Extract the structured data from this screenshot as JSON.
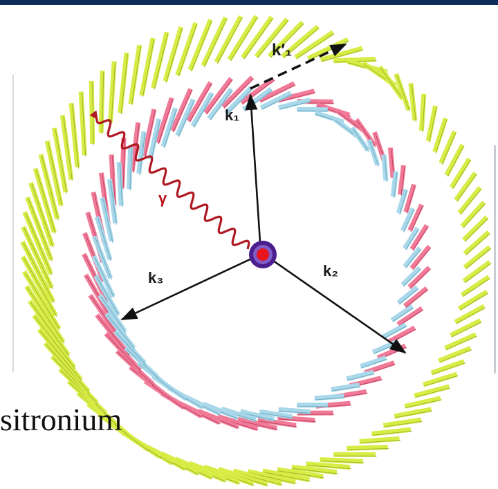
{
  "diagram": {
    "labels": {
      "k1": "k₁",
      "k1_prime": "k′₁",
      "k2": "k₂",
      "k3": "k₃",
      "gamma": "γ"
    },
    "caption": "sitronium",
    "colors": {
      "outer_layer": "#d7ec45",
      "middle_layer": "#f07a98",
      "inner_layer": "#a8d8ea",
      "arrow": "#111111",
      "photon": "#b01822",
      "source_ring": "#4b1d8f",
      "source_core": "#e8141e",
      "top_bar": "#0d2d5a"
    },
    "icons": [
      "positronium-source-icon",
      "photon-wave-icon",
      "arrow-icon"
    ]
  }
}
